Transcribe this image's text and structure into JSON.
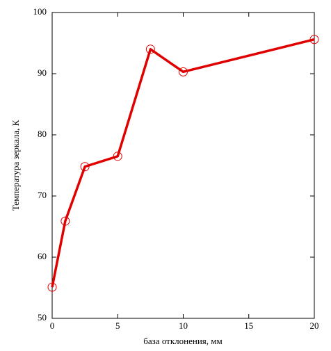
{
  "chart_data": {
    "type": "line",
    "x_label": "база отклонения, мм",
    "y_label": "Температура зеркала, К",
    "x": [
      0,
      1,
      2.5,
      5,
      7.5,
      10,
      20
    ],
    "series": [
      {
        "color": "#e00000",
        "values": [
          55.1,
          65.9,
          74.8,
          76.5,
          94,
          90.3,
          95.6
        ]
      }
    ],
    "xlim": [
      0,
      20
    ],
    "ylim": [
      50,
      100
    ],
    "xticks": [
      0,
      5,
      10,
      15,
      20
    ],
    "yticks": [
      50,
      60,
      70,
      80,
      90,
      100
    ],
    "grid": false
  }
}
